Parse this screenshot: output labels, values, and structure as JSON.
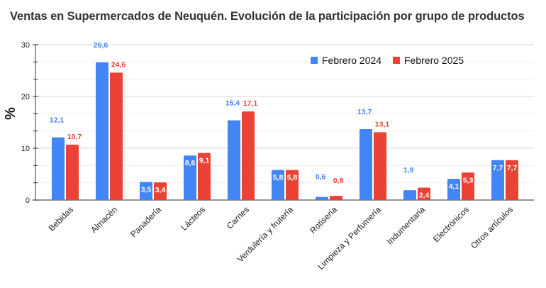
{
  "chart_data": {
    "type": "bar",
    "title": "Ventas en Supermercados de Neuquén. Evolución de la participación por grupo de productos",
    "xlabel": "",
    "ylabel": "%",
    "ylim": [
      0,
      30
    ],
    "yticks": [
      0,
      10,
      20,
      30
    ],
    "minor_gridlines_per_major": 2,
    "grid": true,
    "legend_position": "top-right",
    "categories": [
      "Bebidas",
      "Almacén",
      "Panadería",
      "Lácteos",
      "Carnes",
      "Verdulería y frutería",
      "Rotisería",
      "Limpieza y Perfumería",
      "Indumentaria",
      "Electrónicos",
      "Otros artículos"
    ],
    "series": [
      {
        "name": "Febrero 2024",
        "color": "#4285f4",
        "values": [
          12.1,
          26.6,
          3.5,
          8.6,
          15.4,
          5.8,
          0.6,
          13.7,
          1.9,
          4.1,
          7.7
        ],
        "labels": [
          "12,1",
          "26,6",
          "3,5",
          "8,6",
          "15,4",
          "5,8",
          "0,6",
          "13,7",
          "1,9",
          "4,1",
          "7,7"
        ]
      },
      {
        "name": "Febrero 2025",
        "color": "#ea4335",
        "values": [
          10.7,
          24.6,
          3.4,
          9.1,
          17.1,
          5.8,
          0.8,
          13.1,
          2.4,
          5.3,
          7.7
        ],
        "labels": [
          "10,7",
          "24,6",
          "3,4",
          "9,1",
          "17,1",
          "5,8",
          "0,8",
          "13,1",
          "2,4",
          "5,3",
          "7,7"
        ]
      }
    ]
  }
}
